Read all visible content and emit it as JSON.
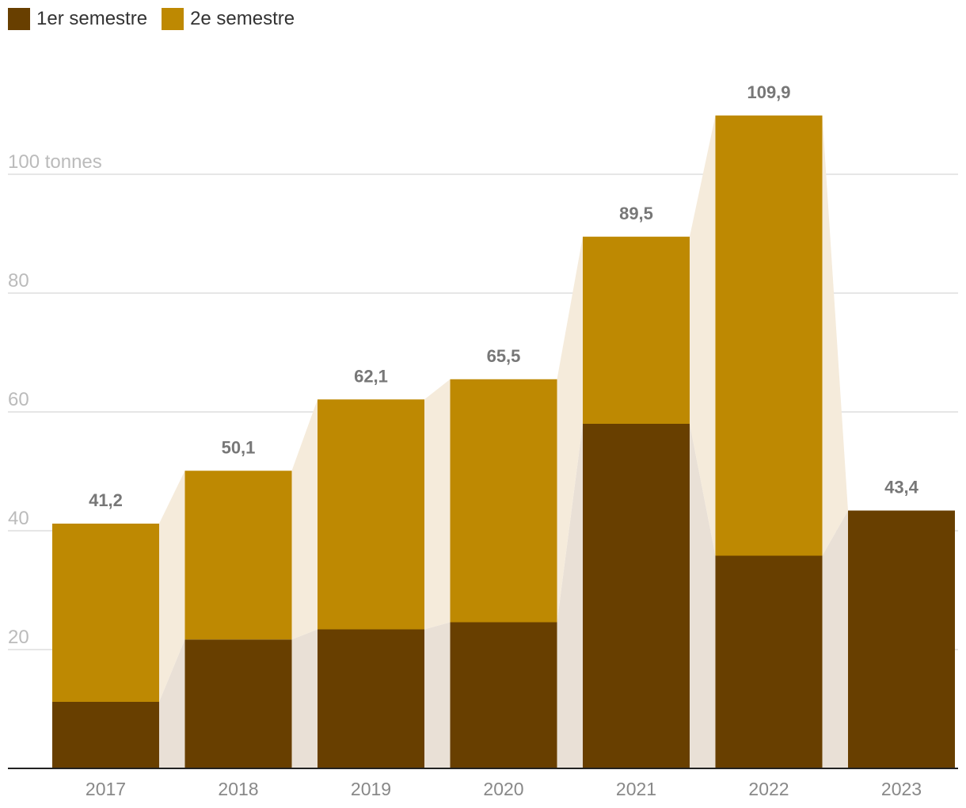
{
  "legend": {
    "items": [
      {
        "label": "1er semestre",
        "color": "#683F00"
      },
      {
        "label": "2e semestre",
        "color": "#BE8902"
      }
    ]
  },
  "chart_data": {
    "type": "bar",
    "stacked": true,
    "categories": [
      "2017",
      "2018",
      "2019",
      "2020",
      "2021",
      "2022",
      "2023"
    ],
    "series": [
      {
        "name": "1er semestre",
        "color": "#683F00",
        "values": [
          11.2,
          21.7,
          23.4,
          24.6,
          58.0,
          35.8,
          43.4
        ]
      },
      {
        "name": "2e semestre",
        "color": "#BE8902",
        "values": [
          30.0,
          28.4,
          38.7,
          40.9,
          31.5,
          74.1,
          null
        ]
      }
    ],
    "totals": [
      41.2,
      50.1,
      62.1,
      65.5,
      89.5,
      109.9,
      43.4
    ],
    "total_labels": [
      "41,2",
      "50,1",
      "62,1",
      "65,5",
      "89,5",
      "109,9",
      "43,4"
    ],
    "yticks": [
      20,
      40,
      60,
      80,
      100
    ],
    "ytick_labels": [
      "20",
      "40",
      "60",
      "80",
      "100 tonnes"
    ],
    "ylim": [
      0,
      120
    ],
    "unit": "tonnes",
    "connector_colors": {
      "first": "#E9E0D6",
      "second": "#F5EBDB"
    },
    "grid_color": "#DDDDDD",
    "axis_color": "#222222",
    "tick_label_color": "#BBBBBB",
    "xlabel_color": "#888888",
    "total_label_color": "#777777"
  }
}
